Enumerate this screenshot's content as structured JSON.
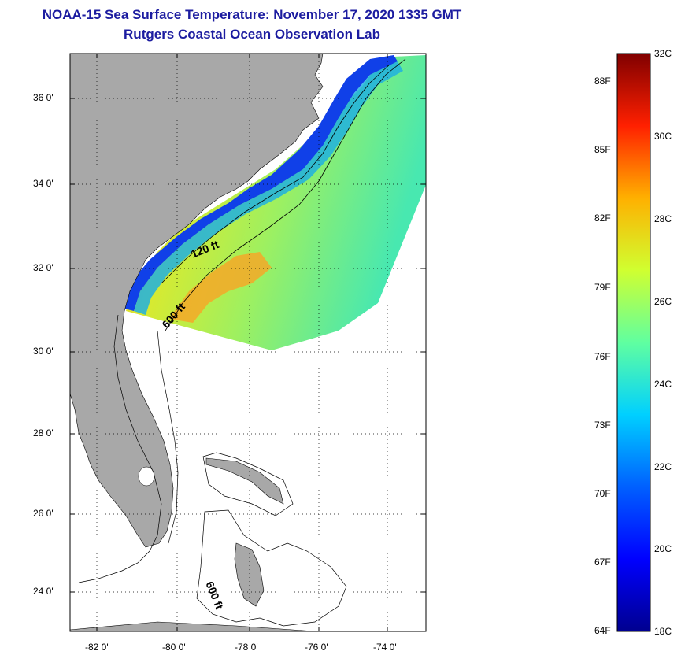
{
  "title": "NOAA-15 Sea Surface Temperature:  November 17, 2020 1335 GMT",
  "subtitle": "Rutgers Coastal Ocean Observation Lab",
  "map": {
    "lat_labels": [
      "36 0'",
      "34 0'",
      "32 0'",
      "30 0'",
      "28 0'",
      "26 0'",
      "24 0'"
    ],
    "lon_labels": [
      "-82 0'",
      "-80 0'",
      "-78 0'",
      "-76 0'",
      "-74 0'"
    ],
    "lat_range": [
      23,
      37.1
    ],
    "lon_range": [
      -83,
      -73
    ],
    "grid": "dotted",
    "isobath_labels": [
      "120 ft",
      "600 ft",
      "600 ft"
    ]
  },
  "colorbar": {
    "fahrenheit_labels": [
      "88F",
      "85F",
      "82F",
      "79F",
      "76F",
      "73F",
      "70F",
      "67F",
      "64F"
    ],
    "celsius_labels": [
      "32C",
      "30C",
      "28C",
      "26C",
      "24C",
      "22C",
      "20C",
      "18C"
    ],
    "range_celsius": [
      18,
      32
    ],
    "colormap": [
      "#00008f",
      "#0000ff",
      "#0080ff",
      "#00ffff",
      "#80ff80",
      "#ffff00",
      "#ff8000",
      "#ff0000",
      "#800000"
    ]
  },
  "colors": {
    "title": "#1c1ca0",
    "land": "#a8a8a8",
    "warm_water": "#f0a020",
    "mid_water": "#b8e838",
    "cool_water": "#40e0b8",
    "coastal_cold": "#0030e0"
  }
}
